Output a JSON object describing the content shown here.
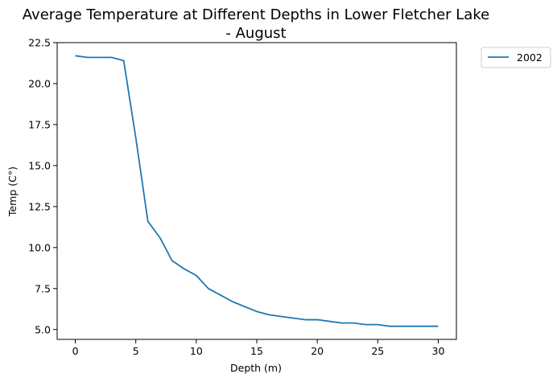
{
  "chart_data": {
    "type": "line",
    "title_line1": "Average Temperature at Different Depths in Lower Fletcher Lake",
    "title_line2": "- August",
    "xlabel": "Depth (m)",
    "ylabel": "Temp (C°)",
    "xlim": [
      -1.5,
      31.5
    ],
    "ylim": [
      4.4,
      22.5
    ],
    "xticks": [
      0,
      5,
      10,
      15,
      20,
      25,
      30
    ],
    "yticks": [
      5.0,
      7.5,
      10.0,
      12.5,
      15.0,
      17.5,
      20.0,
      22.5
    ],
    "xtick_labels": [
      "0",
      "5",
      "10",
      "15",
      "20",
      "25",
      "30"
    ],
    "ytick_labels": [
      "5.0",
      "7.5",
      "10.0",
      "12.5",
      "15.0",
      "17.5",
      "20.0",
      "22.5"
    ],
    "legend_position": "outside-top-right",
    "series": [
      {
        "name": "2002",
        "color": "#1f77b4",
        "x": [
          0,
          1,
          2,
          3,
          4,
          5,
          6,
          7,
          8,
          9,
          10,
          11,
          12,
          13,
          14,
          15,
          16,
          17,
          18,
          19,
          20,
          21,
          22,
          23,
          24,
          25,
          26,
          27,
          28,
          29,
          30
        ],
        "y": [
          21.7,
          21.6,
          21.6,
          21.6,
          21.4,
          16.7,
          11.6,
          10.6,
          9.2,
          8.7,
          8.3,
          7.5,
          7.1,
          6.7,
          6.4,
          6.1,
          5.9,
          5.8,
          5.7,
          5.6,
          5.6,
          5.5,
          5.4,
          5.4,
          5.3,
          5.3,
          5.2,
          5.2,
          5.2,
          5.2,
          5.2
        ]
      }
    ]
  }
}
